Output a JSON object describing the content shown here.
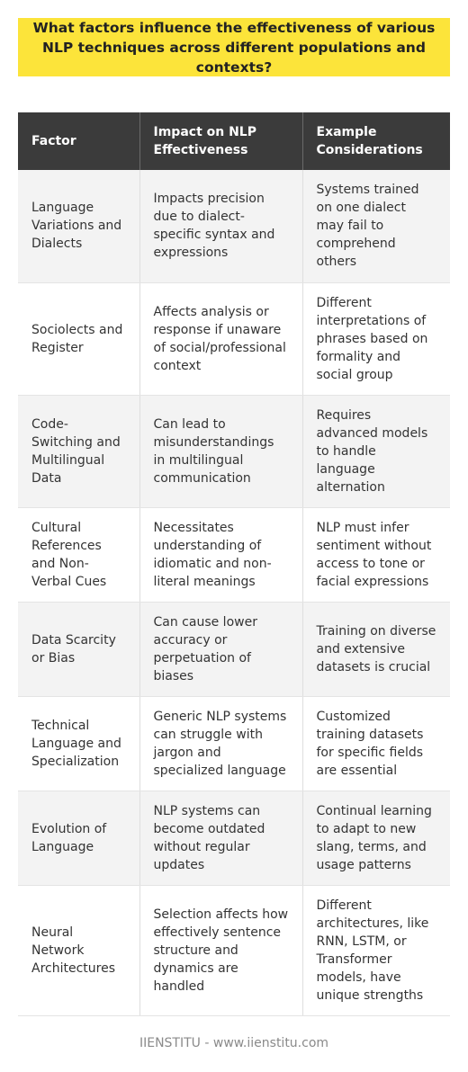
{
  "title": "What factors influence the effectiveness of various NLP techniques across different populations and contexts?",
  "table": {
    "headers": [
      "Factor",
      "Impact on NLP Effectiveness",
      "Example Considerations"
    ],
    "rows": [
      [
        "Language Variations and Dialects",
        "Impacts precision due to dialect-specific syntax and expressions",
        "Systems trained on one dialect may fail to comprehend others"
      ],
      [
        "Sociolects and Register",
        "Affects analysis or response if unaware of social/professional context",
        "Different interpretations of phrases based on formality and social group"
      ],
      [
        "Code-Switching and Multilingual Data",
        "Can lead to misunderstandings in multilingual communication",
        "Requires advanced models to handle language alternation"
      ],
      [
        "Cultural References and Non-Verbal Cues",
        "Necessitates understanding of idiomatic and non-literal meanings",
        "NLP must infer sentiment without access to tone or facial expressions"
      ],
      [
        "Data Scarcity or Bias",
        "Can cause lower accuracy or perpetuation of biases",
        "Training on diverse and extensive datasets is crucial"
      ],
      [
        "Technical Language and Specialization",
        "Generic NLP systems can struggle with jargon and specialized language",
        "Customized training datasets for specific fields are essential"
      ],
      [
        "Evolution of Language",
        "NLP systems can become outdated without regular updates",
        "Continual learning to adapt to new slang, terms, and usage patterns"
      ],
      [
        "Neural Network Architectures",
        "Selection affects how effectively sentence structure and dynamics are handled",
        "Different architectures, like RNN, LSTM, or Transformer models, have unique strengths"
      ]
    ]
  },
  "footer": "IIENSTITU - www.iienstitu.com",
  "colors": {
    "title_background": "#fce43a",
    "header_background": "#3b3b3b",
    "row_alt_background": "#f3f3f3"
  }
}
